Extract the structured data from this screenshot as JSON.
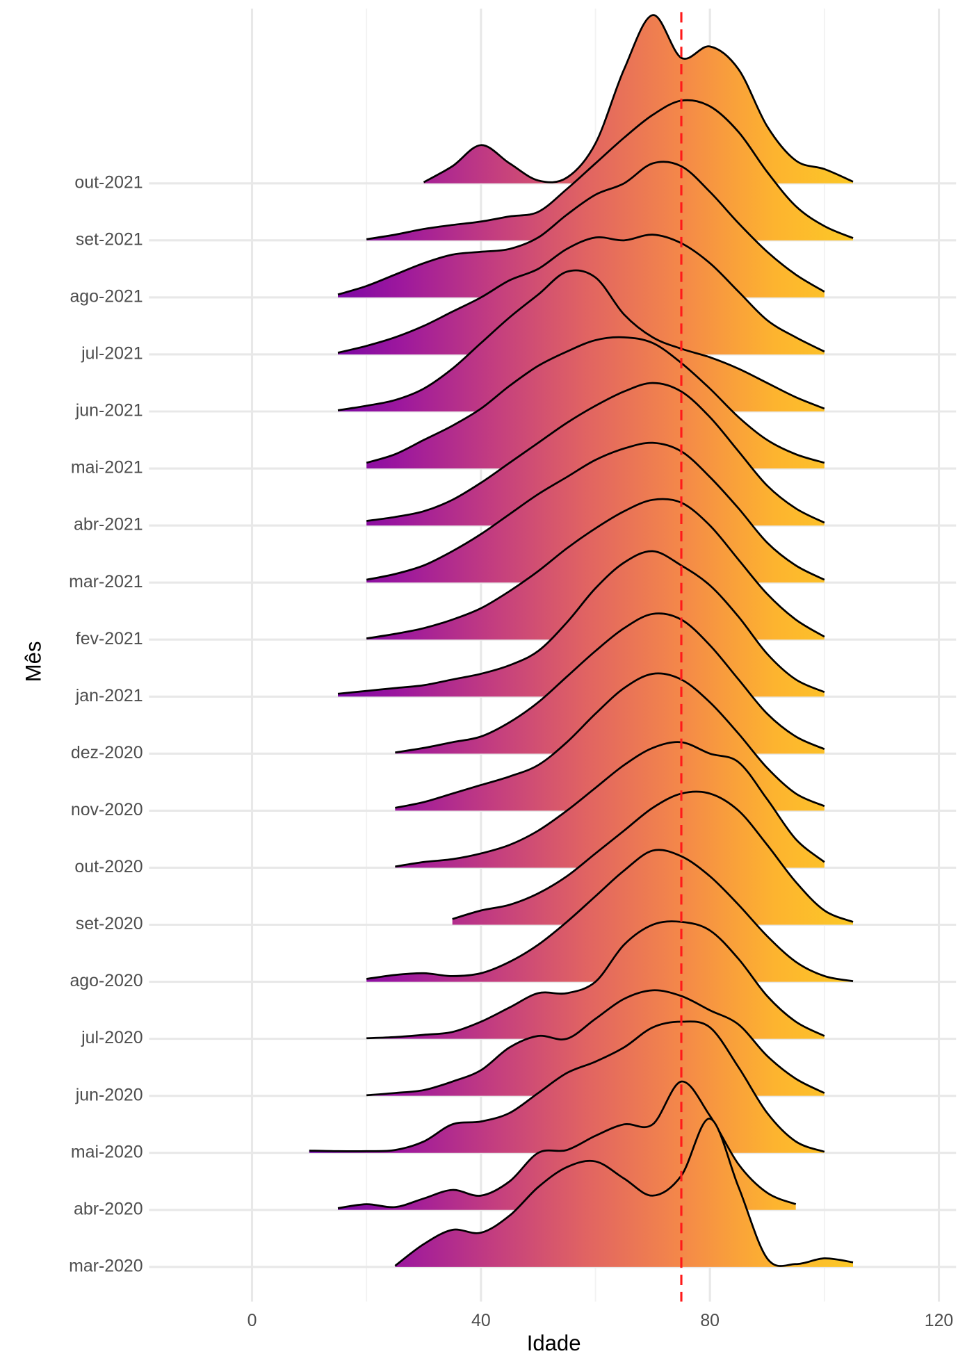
{
  "chart_data": {
    "type": "ridgeline",
    "x_label": "Idade",
    "y_label": "Mês",
    "xlim": [
      -18,
      123
    ],
    "xticks": [
      0,
      40,
      80,
      120
    ],
    "xminor": [
      20,
      60,
      100
    ],
    "grid": true,
    "vline": 75,
    "vline_color": "#ff1a1a",
    "line_color": "#000000",
    "gradient": [
      "#6a00a8",
      "#9c179e",
      "#c33d80",
      "#e16462",
      "#f48849",
      "#fdb42f",
      "#fccd25"
    ],
    "gradient_range": [
      9,
      108
    ],
    "x": [
      10,
      15,
      20,
      25,
      30,
      35,
      40,
      45,
      50,
      55,
      60,
      65,
      70,
      75,
      80,
      85,
      90,
      95,
      100,
      105,
      110
    ],
    "categories": [
      "mar-2020",
      "abr-2020",
      "mai-2020",
      "jun-2020",
      "jul-2020",
      "ago-2020",
      "set-2020",
      "out-2020",
      "nov-2020",
      "dez-2020",
      "jan-2021",
      "fev-2021",
      "mar-2021",
      "abr-2021",
      "mai-2021",
      "jun-2021",
      "jul-2021",
      "ago-2021",
      "set-2021",
      "out-2021"
    ],
    "densities": [
      [
        null,
        null,
        null,
        0.02,
        0.4,
        0.65,
        0.6,
        0.9,
        1.4,
        1.75,
        1.85,
        1.55,
        1.25,
        1.6,
        2.6,
        1.4,
        0.15,
        0.05,
        0.15,
        0.08,
        null
      ],
      [
        null,
        0.03,
        0.1,
        0.05,
        0.2,
        0.35,
        0.25,
        0.5,
        1.0,
        1.05,
        1.3,
        1.5,
        1.5,
        2.25,
        1.65,
        0.8,
        0.3,
        0.1,
        null,
        null,
        null
      ],
      [
        0.04,
        0.03,
        0.03,
        0.05,
        0.2,
        0.5,
        0.55,
        0.7,
        1.05,
        1.4,
        1.6,
        1.85,
        2.2,
        2.3,
        2.2,
        1.5,
        0.7,
        0.2,
        0.02,
        null,
        null
      ],
      [
        null,
        null,
        0.01,
        0.05,
        0.1,
        0.25,
        0.45,
        0.85,
        1.05,
        1.0,
        1.35,
        1.7,
        1.85,
        1.75,
        1.5,
        1.25,
        0.7,
        0.3,
        0.05,
        null,
        null
      ],
      [
        null,
        null,
        0.01,
        0.03,
        0.07,
        0.12,
        0.3,
        0.55,
        0.8,
        0.8,
        1.0,
        1.65,
        2.0,
        2.05,
        1.9,
        1.4,
        0.75,
        0.3,
        0.05,
        null,
        null
      ],
      [
        null,
        null,
        0.05,
        0.12,
        0.15,
        0.1,
        0.15,
        0.35,
        0.65,
        1.05,
        1.5,
        1.95,
        2.3,
        2.2,
        1.85,
        1.35,
        0.8,
        0.35,
        0.1,
        0.01,
        null
      ],
      [
        null,
        null,
        null,
        null,
        null,
        0.1,
        0.25,
        0.35,
        0.55,
        0.85,
        1.25,
        1.65,
        2.05,
        2.3,
        2.3,
        2.0,
        1.4,
        0.75,
        0.25,
        0.05,
        null
      ],
      [
        null,
        null,
        null,
        0.02,
        0.1,
        0.15,
        0.25,
        0.4,
        0.65,
        1.0,
        1.4,
        1.8,
        2.1,
        2.2,
        2.0,
        1.85,
        1.2,
        0.5,
        0.1,
        null,
        null
      ],
      [
        null,
        null,
        null,
        0.05,
        0.15,
        0.3,
        0.45,
        0.6,
        0.8,
        1.2,
        1.7,
        2.15,
        2.4,
        2.3,
        1.9,
        1.35,
        0.75,
        0.3,
        0.08,
        null,
        null
      ],
      [
        null,
        null,
        null,
        0.02,
        0.1,
        0.2,
        0.3,
        0.55,
        0.9,
        1.35,
        1.8,
        2.2,
        2.45,
        2.35,
        1.9,
        1.3,
        0.7,
        0.3,
        0.08,
        null,
        null
      ],
      [
        null,
        0.05,
        0.1,
        0.15,
        0.2,
        0.3,
        0.4,
        0.55,
        0.8,
        1.3,
        1.9,
        2.35,
        2.55,
        2.3,
        1.95,
        1.4,
        0.75,
        0.3,
        0.08,
        null,
        null
      ],
      [
        null,
        null,
        0.02,
        0.1,
        0.2,
        0.35,
        0.55,
        0.85,
        1.2,
        1.6,
        1.95,
        2.25,
        2.45,
        2.4,
        2.0,
        1.4,
        0.8,
        0.35,
        0.05,
        null,
        null
      ],
      [
        null,
        null,
        0.05,
        0.15,
        0.3,
        0.55,
        0.85,
        1.2,
        1.55,
        1.85,
        2.15,
        2.35,
        2.45,
        2.3,
        1.85,
        1.3,
        0.7,
        0.3,
        0.05,
        null,
        null
      ],
      [
        null,
        null,
        0.08,
        0.15,
        0.25,
        0.45,
        0.75,
        1.1,
        1.45,
        1.8,
        2.1,
        2.35,
        2.5,
        2.35,
        1.9,
        1.3,
        0.7,
        0.3,
        0.05,
        null,
        null
      ],
      [
        null,
        null,
        0.1,
        0.25,
        0.5,
        0.75,
        1.05,
        1.45,
        1.8,
        2.05,
        2.25,
        2.3,
        2.2,
        1.85,
        1.4,
        0.9,
        0.5,
        0.25,
        0.1,
        null,
        null
      ],
      [
        null,
        0.02,
        0.1,
        0.2,
        0.4,
        0.75,
        1.2,
        1.65,
        2.05,
        2.45,
        2.35,
        1.7,
        1.3,
        1.1,
        0.95,
        0.75,
        0.5,
        0.25,
        0.05,
        null,
        null
      ],
      [
        null,
        0.03,
        0.15,
        0.3,
        0.5,
        0.75,
        1.0,
        1.3,
        1.5,
        1.85,
        2.05,
        2.0,
        2.1,
        1.95,
        1.6,
        1.1,
        0.6,
        0.3,
        0.05,
        null,
        null
      ],
      [
        null,
        0.05,
        0.2,
        0.4,
        0.6,
        0.75,
        0.8,
        0.85,
        1.05,
        1.45,
        1.8,
        2.0,
        2.35,
        2.3,
        1.85,
        1.3,
        0.8,
        0.4,
        0.1,
        null,
        null
      ],
      [
        null,
        null,
        0.02,
        0.1,
        0.2,
        0.27,
        0.33,
        0.42,
        0.5,
        0.9,
        1.35,
        1.8,
        2.2,
        2.45,
        2.35,
        1.9,
        1.2,
        0.6,
        0.25,
        0.04,
        null
      ],
      [
        null,
        null,
        null,
        null,
        0.02,
        0.3,
        0.67,
        0.35,
        0.05,
        0.1,
        0.7,
        2.0,
        2.95,
        2.2,
        2.4,
        2.0,
        1.0,
        0.4,
        0.25,
        0.03,
        null
      ]
    ]
  }
}
